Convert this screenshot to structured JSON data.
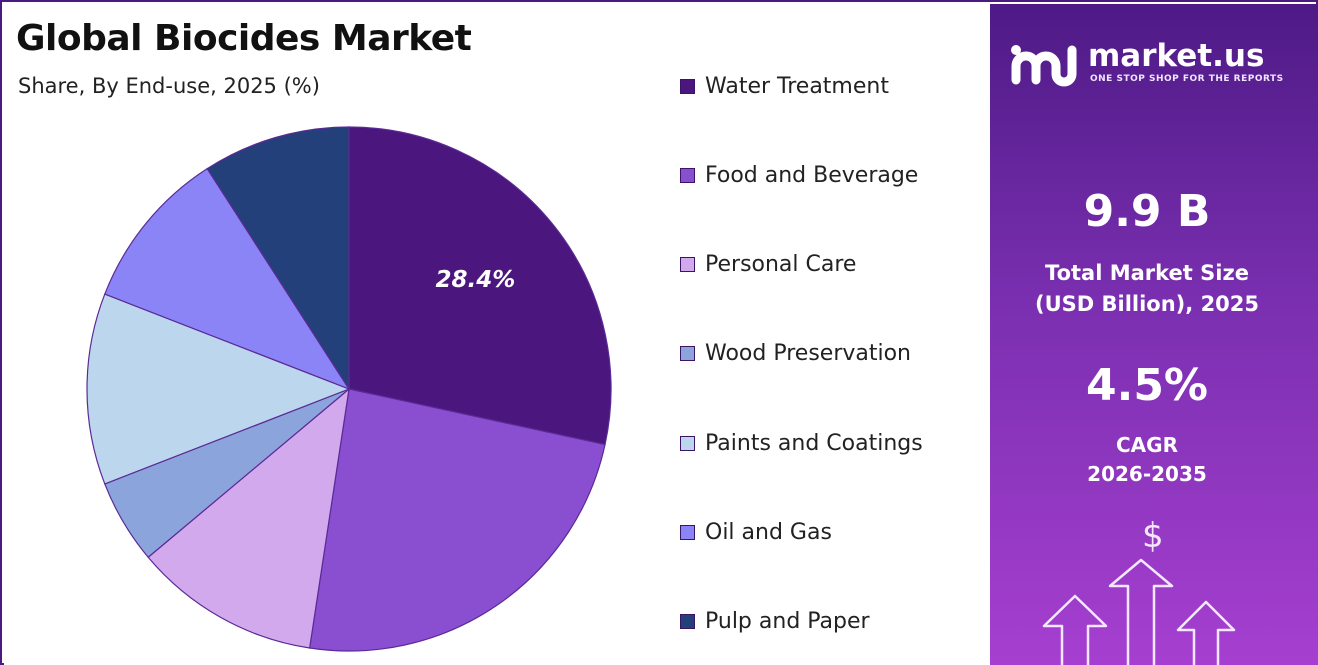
{
  "header": {
    "title": "Global Biocides Market",
    "subtitle": "Share, By End-use, 2025 (%)"
  },
  "chart_data": {
    "type": "pie",
    "title": "Global Biocides Market",
    "subtitle": "Share, By End-use, 2025 (%)",
    "labels": [
      "Water Treatment",
      "Food and Beverage",
      "Personal Care",
      "Wood Preservation",
      "Paints and Coatings",
      "Oil and Gas",
      "Pulp and Paper"
    ],
    "values": [
      28.4,
      24.0,
      11.5,
      5.2,
      11.8,
      10.0,
      9.1
    ],
    "colors": [
      "#4b167e",
      "#8a4fd0",
      "#d3a9ee",
      "#8ba4dc",
      "#bcd6ee",
      "#8b84f7",
      "#23407a"
    ],
    "data_labels": [
      {
        "slice": "Water Treatment",
        "text": "28.4%"
      }
    ],
    "start_angle_deg": 0,
    "direction": "clockwise",
    "legend_position": "right"
  },
  "side_panel": {
    "logo_text": "market.us",
    "logo_tagline": "ONE STOP SHOP FOR THE REPORTS",
    "market_size_value": "9.9 B",
    "market_size_label_line1": "Total Market Size",
    "market_size_label_line2": "(USD Billion), 2025",
    "cagr_value": "4.5%",
    "cagr_label_line1": "CAGR",
    "cagr_label_line2": "2026-2035",
    "icon": "dollar-growth-arrows-icon",
    "dollar_symbol": "$"
  },
  "colors": {
    "panel_top": "#4e1a86",
    "panel_bottom": "#a63fd0",
    "border": "#4b1a7e"
  }
}
